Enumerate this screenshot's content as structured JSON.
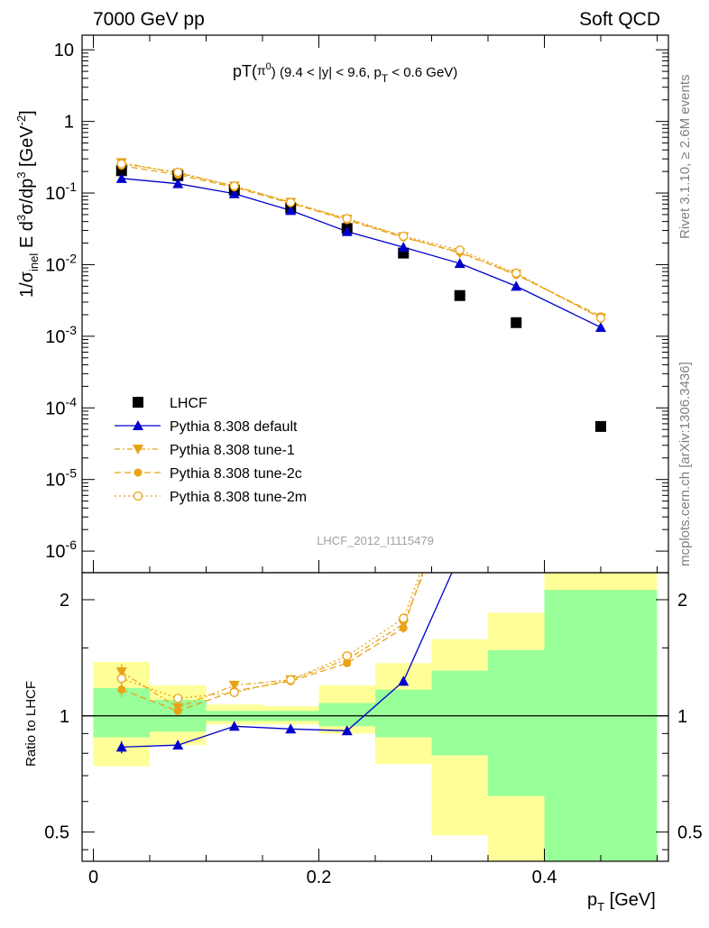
{
  "header": {
    "left": "7000 GeV pp",
    "right": "Soft QCD"
  },
  "side_text": {
    "rivet": "Rivet 3.1.10, ≥ 2.6M events",
    "mcplots": "mcplots.cern.ch [arXiv:1306.3436]"
  },
  "watermark": "LHCF_2012_I1115479",
  "colors": {
    "data": "#000000",
    "default": "#0000cc",
    "tune": "#e8a317",
    "band_inner": "#99ff99",
    "band_outer": "#ffff99"
  },
  "chart_data": [
    {
      "type": "scatter",
      "title_parts": [
        "pT(",
        "π",
        "0",
        ") (9.4 < |y| < 9.6, p",
        "T",
        " < 0.6 GeV)"
      ],
      "ylabel_parts": [
        "1/σ",
        "inel",
        " E d",
        "3",
        "σ/dp",
        "3",
        " [GeV",
        "-2",
        "]"
      ],
      "yscale": "log",
      "ylim": [
        5e-07,
        16
      ],
      "xlim": [
        -0.01,
        0.51
      ],
      "yticks": [
        {
          "v": 10,
          "label": "10"
        },
        {
          "v": 1,
          "label": "1"
        },
        {
          "b": "10",
          "e": "-1",
          "v": 0.1
        },
        {
          "b": "10",
          "e": "-2",
          "v": 0.01
        },
        {
          "b": "10",
          "e": "-3",
          "v": 0.001
        },
        {
          "b": "10",
          "e": "-4",
          "v": 0.0001
        },
        {
          "b": "10",
          "e": "-5",
          "v": 1e-05
        },
        {
          "b": "10",
          "e": "-6",
          "v": 1e-06
        }
      ],
      "x": [
        0.025,
        0.075,
        0.125,
        0.175,
        0.225,
        0.275,
        0.325,
        0.375,
        0.45
      ],
      "series": [
        {
          "name": "LHCF",
          "marker": "square",
          "values": [
            0.205,
            0.175,
            0.11,
            0.062,
            0.032,
            0.0145,
            0.0037,
            0.00155,
            5.5e-05
          ]
        },
        {
          "name": "Pythia 8.308 default",
          "marker": "triangle-up",
          "values": [
            0.16,
            0.135,
            0.098,
            0.057,
            0.029,
            0.0175,
            0.0104,
            0.005,
            0.00133
          ]
        },
        {
          "name": "Pythia 8.308 tune-1",
          "marker": "triangle-down",
          "values": [
            0.265,
            0.19,
            0.125,
            0.074,
            0.043,
            0.0245,
            0.0145,
            0.0074,
            0.0018
          ]
        },
        {
          "name": "Pythia 8.308 tune-2c",
          "marker": "circle",
          "values": [
            0.24,
            0.18,
            0.12,
            0.072,
            0.042,
            0.024,
            0.015,
            0.0072,
            0.0019
          ]
        },
        {
          "name": "Pythia 8.308 tune-2m",
          "marker": "circle-open",
          "values": [
            0.255,
            0.195,
            0.125,
            0.074,
            0.044,
            0.025,
            0.016,
            0.0076,
            0.0018
          ]
        }
      ]
    },
    {
      "type": "scatter",
      "ylabel": "Ratio to LHCF",
      "xlabel_parts": [
        "p",
        "T",
        " [GeV]"
      ],
      "yscale": "log",
      "ylim": [
        0.42,
        2.35
      ],
      "xlim": [
        -0.01,
        0.51
      ],
      "yticks": [
        0.5,
        1,
        2
      ],
      "xticks": [
        0,
        0.2,
        0.4
      ],
      "bins": [
        {
          "lo": 0.0,
          "hi": 0.05,
          "inner": [
            0.88,
            1.18
          ],
          "outer": [
            0.74,
            1.38
          ]
        },
        {
          "lo": 0.05,
          "hi": 0.1,
          "inner": [
            0.91,
            1.1
          ],
          "outer": [
            0.84,
            1.2
          ]
        },
        {
          "lo": 0.1,
          "hi": 0.15,
          "inner": [
            0.97,
            1.03
          ],
          "outer": [
            0.95,
            1.07
          ]
        },
        {
          "lo": 0.15,
          "hi": 0.2,
          "inner": [
            0.97,
            1.03
          ],
          "outer": [
            0.95,
            1.06
          ]
        },
        {
          "lo": 0.2,
          "hi": 0.25,
          "inner": [
            0.94,
            1.08
          ],
          "outer": [
            0.9,
            1.2
          ]
        },
        {
          "lo": 0.25,
          "hi": 0.3,
          "inner": [
            0.88,
            1.17
          ],
          "outer": [
            0.75,
            1.37
          ]
        },
        {
          "lo": 0.3,
          "hi": 0.35,
          "inner": [
            0.79,
            1.31
          ],
          "outer": [
            0.49,
            1.58
          ]
        },
        {
          "lo": 0.35,
          "hi": 0.4,
          "inner": [
            0.62,
            1.48
          ],
          "outer": [
            0.42,
            1.85
          ]
        },
        {
          "lo": 0.4,
          "hi": 0.5,
          "inner": [
            0.42,
            2.12
          ],
          "outer": [
            0.42,
            2.35
          ]
        }
      ],
      "series": [
        {
          "name": "Pythia 8.308 default",
          "x": [
            0.025,
            0.075,
            0.125,
            0.175,
            0.225,
            0.275,
            0.318
          ],
          "values": [
            0.83,
            0.84,
            0.94,
            0.925,
            0.915,
            1.23,
            2.35
          ],
          "errors": [
            0.03,
            0.01,
            0.01,
            0.005,
            0.02,
            0.03,
            0
          ],
          "markers": 6
        },
        {
          "name": "Pythia 8.308 tune-1",
          "x": [
            0.025,
            0.075,
            0.125,
            0.175,
            0.225,
            0.275,
            0.293
          ],
          "values": [
            1.3,
            1.05,
            1.2,
            1.24,
            1.4,
            1.73,
            2.35
          ],
          "errors": [
            0.06,
            0.02,
            0.02,
            0.01,
            0.02,
            0.05,
            0
          ],
          "markers": 6
        },
        {
          "name": "Pythia 8.308 tune-2c",
          "x": [
            0.025,
            0.075,
            0.125,
            0.175,
            0.225,
            0.275,
            0.292
          ],
          "values": [
            1.17,
            1.03,
            1.16,
            1.23,
            1.37,
            1.69,
            2.35
          ],
          "errors": [
            0.05,
            0.02,
            0.02,
            0.01,
            0.02,
            0.05,
            0
          ],
          "markers": 6
        },
        {
          "name": "Pythia 8.308 tune-2m",
          "x": [
            0.025,
            0.075,
            0.125,
            0.175,
            0.225,
            0.275,
            0.29
          ],
          "values": [
            1.25,
            1.11,
            1.15,
            1.24,
            1.43,
            1.79,
            2.35
          ],
          "errors": [
            0.06,
            0.02,
            0.02,
            0.01,
            0.02,
            0.05,
            0
          ],
          "markers": 6
        }
      ]
    }
  ]
}
